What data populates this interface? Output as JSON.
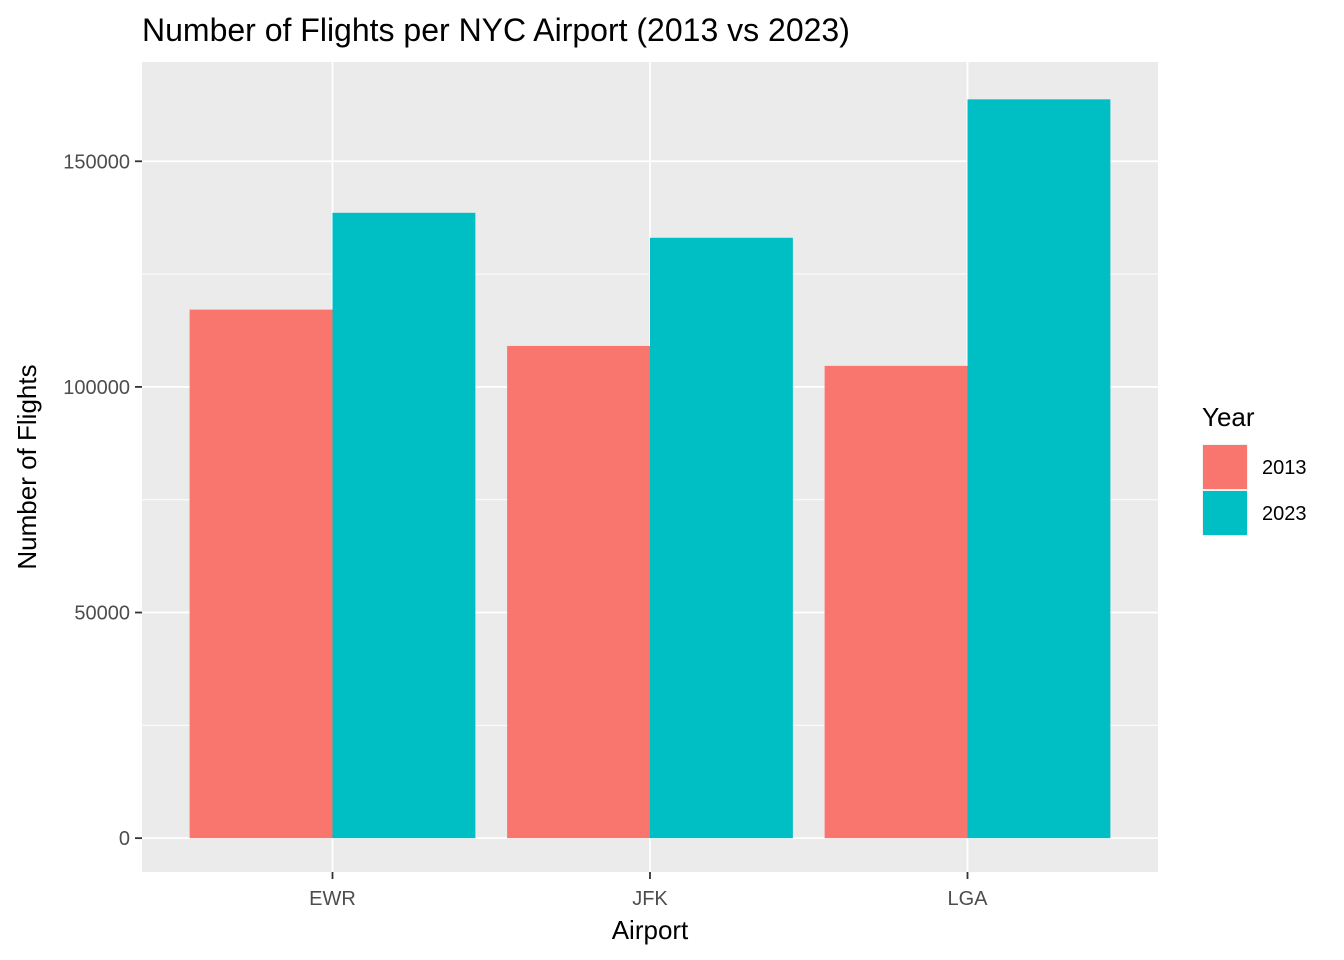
{
  "chart_data": {
    "type": "bar",
    "title": "Number of Flights per NYC Airport (2013 vs 2023)",
    "xlabel": "Airport",
    "ylabel": "Number of Flights",
    "categories": [
      "EWR",
      "JFK",
      "LGA"
    ],
    "series": [
      {
        "name": "2013",
        "color": "#F8766D",
        "values": [
          117127,
          109079,
          104662
        ]
      },
      {
        "name": "2023",
        "color": "#00BFC4",
        "values": [
          138578,
          133048,
          163726
        ]
      }
    ],
    "ylim": [
      -7500,
      172000
    ],
    "yticks": [
      0,
      50000,
      100000,
      150000
    ],
    "ytick_labels": [
      "0",
      "50000",
      "100000",
      "150000"
    ],
    "grid": true,
    "background_color": "#EBEBEB",
    "grid_color": "#FFFFFF",
    "legend": {
      "title": "Year",
      "position": "right"
    }
  }
}
